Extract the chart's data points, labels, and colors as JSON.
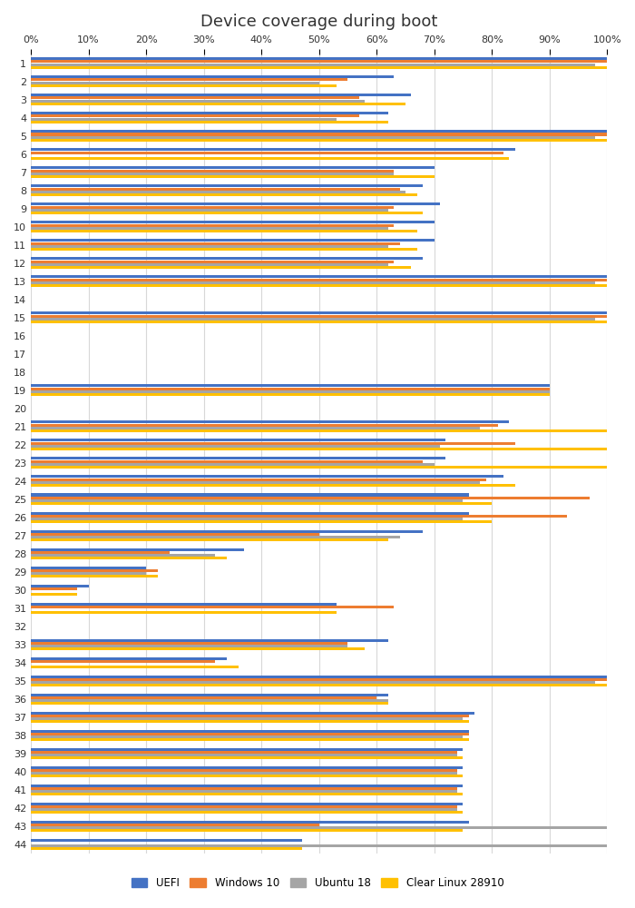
{
  "title": "Device coverage during boot",
  "categories": [
    1,
    2,
    3,
    4,
    5,
    6,
    7,
    8,
    9,
    10,
    11,
    12,
    13,
    14,
    15,
    16,
    17,
    18,
    19,
    20,
    21,
    22,
    23,
    24,
    25,
    26,
    27,
    28,
    29,
    30,
    31,
    32,
    33,
    34,
    35,
    36,
    37,
    38,
    39,
    40,
    41,
    42,
    43,
    44
  ],
  "series": {
    "UEFI": [
      100,
      63,
      66,
      62,
      100,
      84,
      70,
      68,
      71,
      70,
      70,
      68,
      100,
      0,
      100,
      0,
      0,
      0,
      90,
      0,
      83,
      72,
      72,
      82,
      76,
      76,
      68,
      37,
      20,
      10,
      53,
      0,
      62,
      34,
      100,
      62,
      77,
      76,
      75,
      75,
      75,
      75,
      76,
      47
    ],
    "Windows 10": [
      100,
      55,
      57,
      57,
      100,
      82,
      63,
      64,
      63,
      63,
      64,
      63,
      100,
      0,
      100,
      0,
      0,
      0,
      90,
      0,
      81,
      84,
      68,
      79,
      97,
      93,
      50,
      24,
      22,
      8,
      63,
      0,
      55,
      32,
      100,
      60,
      76,
      76,
      74,
      74,
      74,
      74,
      50,
      0
    ],
    "Ubuntu 18": [
      98,
      50,
      58,
      53,
      98,
      0,
      63,
      65,
      62,
      62,
      62,
      62,
      98,
      0,
      98,
      0,
      0,
      0,
      90,
      0,
      78,
      71,
      70,
      78,
      75,
      75,
      64,
      32,
      20,
      0,
      0,
      0,
      55,
      0,
      98,
      62,
      75,
      75,
      74,
      74,
      74,
      74,
      100,
      100
    ],
    "Clear Linux 28910": [
      100,
      53,
      65,
      62,
      100,
      83,
      70,
      67,
      68,
      67,
      67,
      66,
      100,
      0,
      100,
      0,
      0,
      0,
      90,
      0,
      100,
      100,
      100,
      84,
      80,
      80,
      62,
      34,
      22,
      8,
      53,
      0,
      58,
      36,
      100,
      62,
      76,
      76,
      75,
      75,
      75,
      75,
      75,
      47
    ]
  },
  "colors": {
    "UEFI": "#4472c4",
    "Windows 10": "#ed7d31",
    "Ubuntu 18": "#a5a5a5",
    "Clear Linux 28910": "#ffc000"
  },
  "xticks": [
    0,
    10,
    20,
    30,
    40,
    50,
    60,
    70,
    80,
    90,
    100
  ],
  "figsize": [
    7.0,
    10.0
  ],
  "dpi": 100,
  "background_color": "#ffffff"
}
